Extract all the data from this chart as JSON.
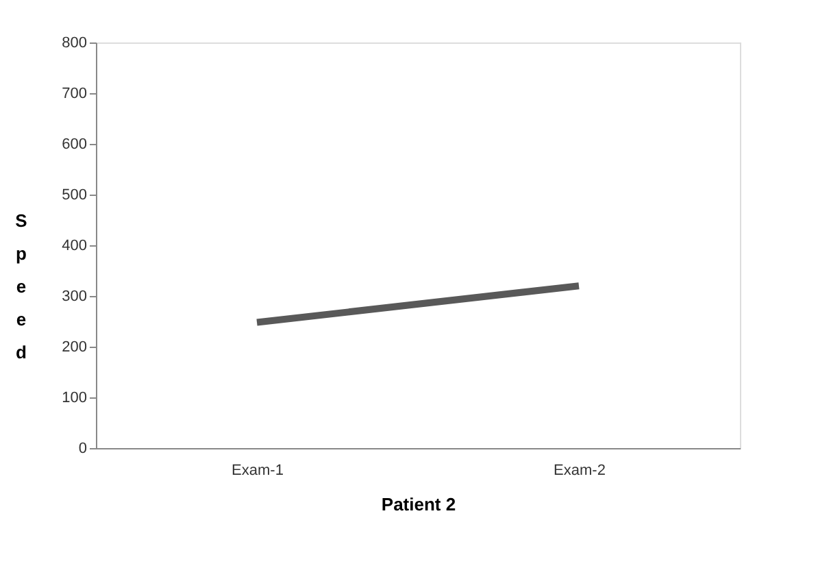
{
  "chart_data": {
    "type": "line",
    "xlabel": "Patient 2",
    "ylabel": "Speed",
    "categories": [
      "Exam-1",
      "Exam-2"
    ],
    "series": [
      {
        "color": "#595959",
        "values": [
          248,
          320
        ]
      }
    ],
    "ylim": [
      0,
      800
    ],
    "yticks": [
      0,
      100,
      200,
      300,
      400,
      500,
      600,
      700,
      800
    ],
    "grid": false,
    "legend": false,
    "marker": "none"
  }
}
